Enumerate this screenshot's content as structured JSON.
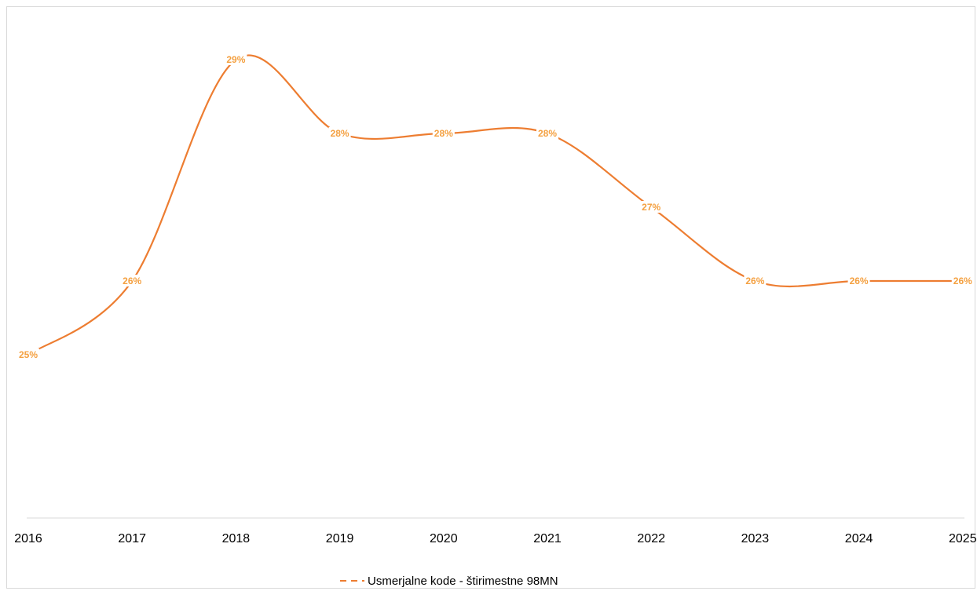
{
  "chart_data": {
    "type": "line",
    "title": "",
    "xlabel": "",
    "ylabel": "",
    "x": [
      "2016",
      "2017",
      "2018",
      "2019",
      "2020",
      "2021",
      "2022",
      "2023",
      "2024",
      "2025"
    ],
    "series": [
      {
        "name": "Usmerjalne kode - štirimestne 98MN",
        "values": [
          25,
          26,
          29,
          28,
          28,
          28,
          27,
          26,
          26,
          26
        ],
        "labels": [
          "25%",
          "26%",
          "29%",
          "28%",
          "28%",
          "28%",
          "27%",
          "26%",
          "26%",
          "26%"
        ],
        "color": "#ED7D31",
        "label_color": "#F4A040",
        "line_style": "smooth"
      }
    ],
    "grid": false,
    "legend_position": "bottom",
    "legend_marker": "dashed"
  }
}
